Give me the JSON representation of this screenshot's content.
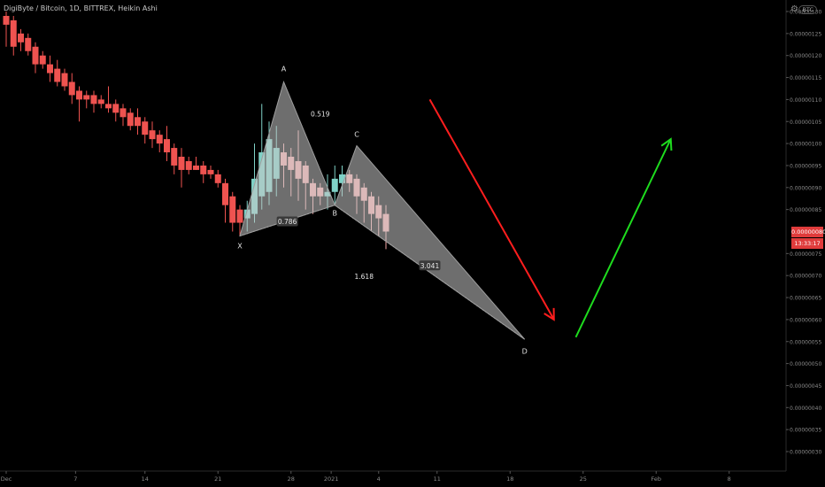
{
  "header": {
    "title": "DigiByte / Bitcoin, 1D, BITTREX, Heikin Ashi",
    "currency": "BTC"
  },
  "price_label": {
    "value": "0.00000080",
    "time": "13:33:17",
    "color": "#e03b3b"
  },
  "chart_data": {
    "type": "candlestick",
    "title": "DigiByte / Bitcoin, 1D, BITTREX, Heikin Ashi",
    "style": "Heikin Ashi",
    "ylim": [
      2.8e-07,
      1.31e-06
    ],
    "y_ticks": [
      "0.00000130",
      "0.00000125",
      "0.00000120",
      "0.00000115",
      "0.00000110",
      "0.00000105",
      "0.00000100",
      "0.00000095",
      "0.00000090",
      "0.00000085",
      "0.00000075",
      "0.00000070",
      "0.00000065",
      "0.00000060",
      "0.00000055",
      "0.00000050",
      "0.00000045",
      "0.00000040",
      "0.00000035",
      "0.00000030"
    ],
    "x_ticks": [
      "Dec",
      "7",
      "14",
      "21",
      "28",
      "2021",
      "4",
      "11",
      "18",
      "25",
      "Feb",
      "8"
    ],
    "colors": {
      "up": "#7fd1c6",
      "down": "#ef5350",
      "down_light": "#f4a6a6",
      "pattern": "#9e9e9e",
      "bear_arrow": "#ff1e1e",
      "bull_arrow": "#1edc1e"
    },
    "candles": [
      {
        "o": 1.29,
        "c": 1.27,
        "h": 1.3,
        "l": 1.22
      },
      {
        "o": 1.28,
        "c": 1.22,
        "h": 1.29,
        "l": 1.2
      },
      {
        "o": 1.25,
        "c": 1.23,
        "h": 1.26,
        "l": 1.21
      },
      {
        "o": 1.24,
        "c": 1.21,
        "h": 1.25,
        "l": 1.2
      },
      {
        "o": 1.22,
        "c": 1.18,
        "h": 1.23,
        "l": 1.16
      },
      {
        "o": 1.2,
        "c": 1.18,
        "h": 1.21,
        "l": 1.17
      },
      {
        "o": 1.18,
        "c": 1.16,
        "h": 1.2,
        "l": 1.14
      },
      {
        "o": 1.17,
        "c": 1.14,
        "h": 1.19,
        "l": 1.13
      },
      {
        "o": 1.16,
        "c": 1.13,
        "h": 1.17,
        "l": 1.12
      },
      {
        "o": 1.14,
        "c": 1.11,
        "h": 1.16,
        "l": 1.09
      },
      {
        "o": 1.12,
        "c": 1.1,
        "h": 1.13,
        "l": 1.05
      },
      {
        "o": 1.11,
        "c": 1.1,
        "h": 1.12,
        "l": 1.08
      },
      {
        "o": 1.11,
        "c": 1.09,
        "h": 1.12,
        "l": 1.07
      },
      {
        "o": 1.1,
        "c": 1.09,
        "h": 1.11,
        "l": 1.08
      },
      {
        "o": 1.09,
        "c": 1.08,
        "h": 1.13,
        "l": 1.07
      },
      {
        "o": 1.09,
        "c": 1.07,
        "h": 1.1,
        "l": 1.05
      },
      {
        "o": 1.08,
        "c": 1.06,
        "h": 1.09,
        "l": 1.04
      },
      {
        "o": 1.07,
        "c": 1.04,
        "h": 1.08,
        "l": 1.03
      },
      {
        "o": 1.06,
        "c": 1.04,
        "h": 1.08,
        "l": 1.02
      },
      {
        "o": 1.05,
        "c": 1.02,
        "h": 1.06,
        "l": 1.0
      },
      {
        "o": 1.03,
        "c": 1.01,
        "h": 1.05,
        "l": 0.99
      },
      {
        "o": 1.02,
        "c": 1.0,
        "h": 1.03,
        "l": 0.98
      },
      {
        "o": 1.01,
        "c": 0.98,
        "h": 1.04,
        "l": 0.96
      },
      {
        "o": 0.99,
        "c": 0.95,
        "h": 1.0,
        "l": 0.93
      },
      {
        "o": 0.97,
        "c": 0.94,
        "h": 0.99,
        "l": 0.9
      },
      {
        "o": 0.96,
        "c": 0.94,
        "h": 0.97,
        "l": 0.93
      },
      {
        "o": 0.95,
        "c": 0.94,
        "h": 0.97,
        "l": 0.94
      },
      {
        "o": 0.95,
        "c": 0.93,
        "h": 0.96,
        "l": 0.91
      },
      {
        "o": 0.94,
        "c": 0.93,
        "h": 0.95,
        "l": 0.92
      },
      {
        "o": 0.93,
        "c": 0.91,
        "h": 0.94,
        "l": 0.9
      },
      {
        "o": 0.91,
        "c": 0.86,
        "h": 0.92,
        "l": 0.82
      },
      {
        "o": 0.88,
        "c": 0.82,
        "h": 0.89,
        "l": 0.8
      },
      {
        "o": 0.85,
        "c": 0.82,
        "h": 0.86,
        "l": 0.79
      },
      {
        "o": 0.83,
        "c": 0.85,
        "h": 0.87,
        "l": 0.8
      },
      {
        "o": 0.84,
        "c": 0.92,
        "h": 1.0,
        "l": 0.82
      },
      {
        "o": 0.88,
        "c": 0.98,
        "h": 1.09,
        "l": 0.85
      },
      {
        "o": 0.89,
        "c": 1.01,
        "h": 1.05,
        "l": 0.86
      },
      {
        "o": 0.92,
        "c": 0.99,
        "h": 1.04,
        "l": 0.88
      },
      {
        "o": 0.98,
        "c": 0.95,
        "h": 1.0,
        "l": 0.9
      },
      {
        "o": 0.97,
        "c": 0.94,
        "h": 0.99,
        "l": 0.88
      },
      {
        "o": 0.96,
        "c": 0.92,
        "h": 1.03,
        "l": 0.87
      },
      {
        "o": 0.95,
        "c": 0.91,
        "h": 0.96,
        "l": 0.85
      },
      {
        "o": 0.91,
        "c": 0.88,
        "h": 0.92,
        "l": 0.84
      },
      {
        "o": 0.9,
        "c": 0.88,
        "h": 0.91,
        "l": 0.86
      },
      {
        "o": 0.88,
        "c": 0.89,
        "h": 0.93,
        "l": 0.85
      },
      {
        "o": 0.89,
        "c": 0.92,
        "h": 0.95,
        "l": 0.86
      },
      {
        "o": 0.91,
        "c": 0.93,
        "h": 0.95,
        "l": 0.88
      },
      {
        "o": 0.93,
        "c": 0.91,
        "h": 0.94,
        "l": 0.89
      },
      {
        "o": 0.92,
        "c": 0.88,
        "h": 0.93,
        "l": 0.84
      },
      {
        "o": 0.9,
        "c": 0.87,
        "h": 0.91,
        "l": 0.82
      },
      {
        "o": 0.88,
        "c": 0.84,
        "h": 0.89,
        "l": 0.8
      },
      {
        "o": 0.86,
        "c": 0.83,
        "h": 0.88,
        "l": 0.79
      },
      {
        "o": 0.84,
        "c": 0.8,
        "h": 0.86,
        "l": 0.76
      }
    ],
    "harmonic_pattern": {
      "points": [
        {
          "label": "X",
          "idx": 32,
          "price": 0.79
        },
        {
          "label": "A",
          "idx": 38,
          "price": 1.14
        },
        {
          "label": "B",
          "idx": 45,
          "price": 0.86
        },
        {
          "label": "C",
          "idx": 48,
          "price": 0.995
        },
        {
          "label": "D",
          "idx": 71,
          "price": 0.555
        }
      ],
      "ratios": [
        {
          "text": "0.519",
          "idx": 43,
          "price": 1.065
        },
        {
          "text": "0.786",
          "idx": 38.5,
          "price": 0.82,
          "boxed": true
        },
        {
          "text": "1.618",
          "idx": 49,
          "price": 0.695
        },
        {
          "text": "3.041",
          "idx": 58,
          "price": 0.72,
          "boxed": true
        }
      ]
    },
    "arrows": [
      {
        "from": {
          "idx": 58,
          "price": 1.1
        },
        "to": {
          "idx": 75,
          "price": 0.6
        },
        "color": "#ff1e1e"
      },
      {
        "from": {
          "idx": 78,
          "price": 0.56
        },
        "to": {
          "idx": 91,
          "price": 1.01
        },
        "color": "#1edc1e"
      }
    ]
  }
}
